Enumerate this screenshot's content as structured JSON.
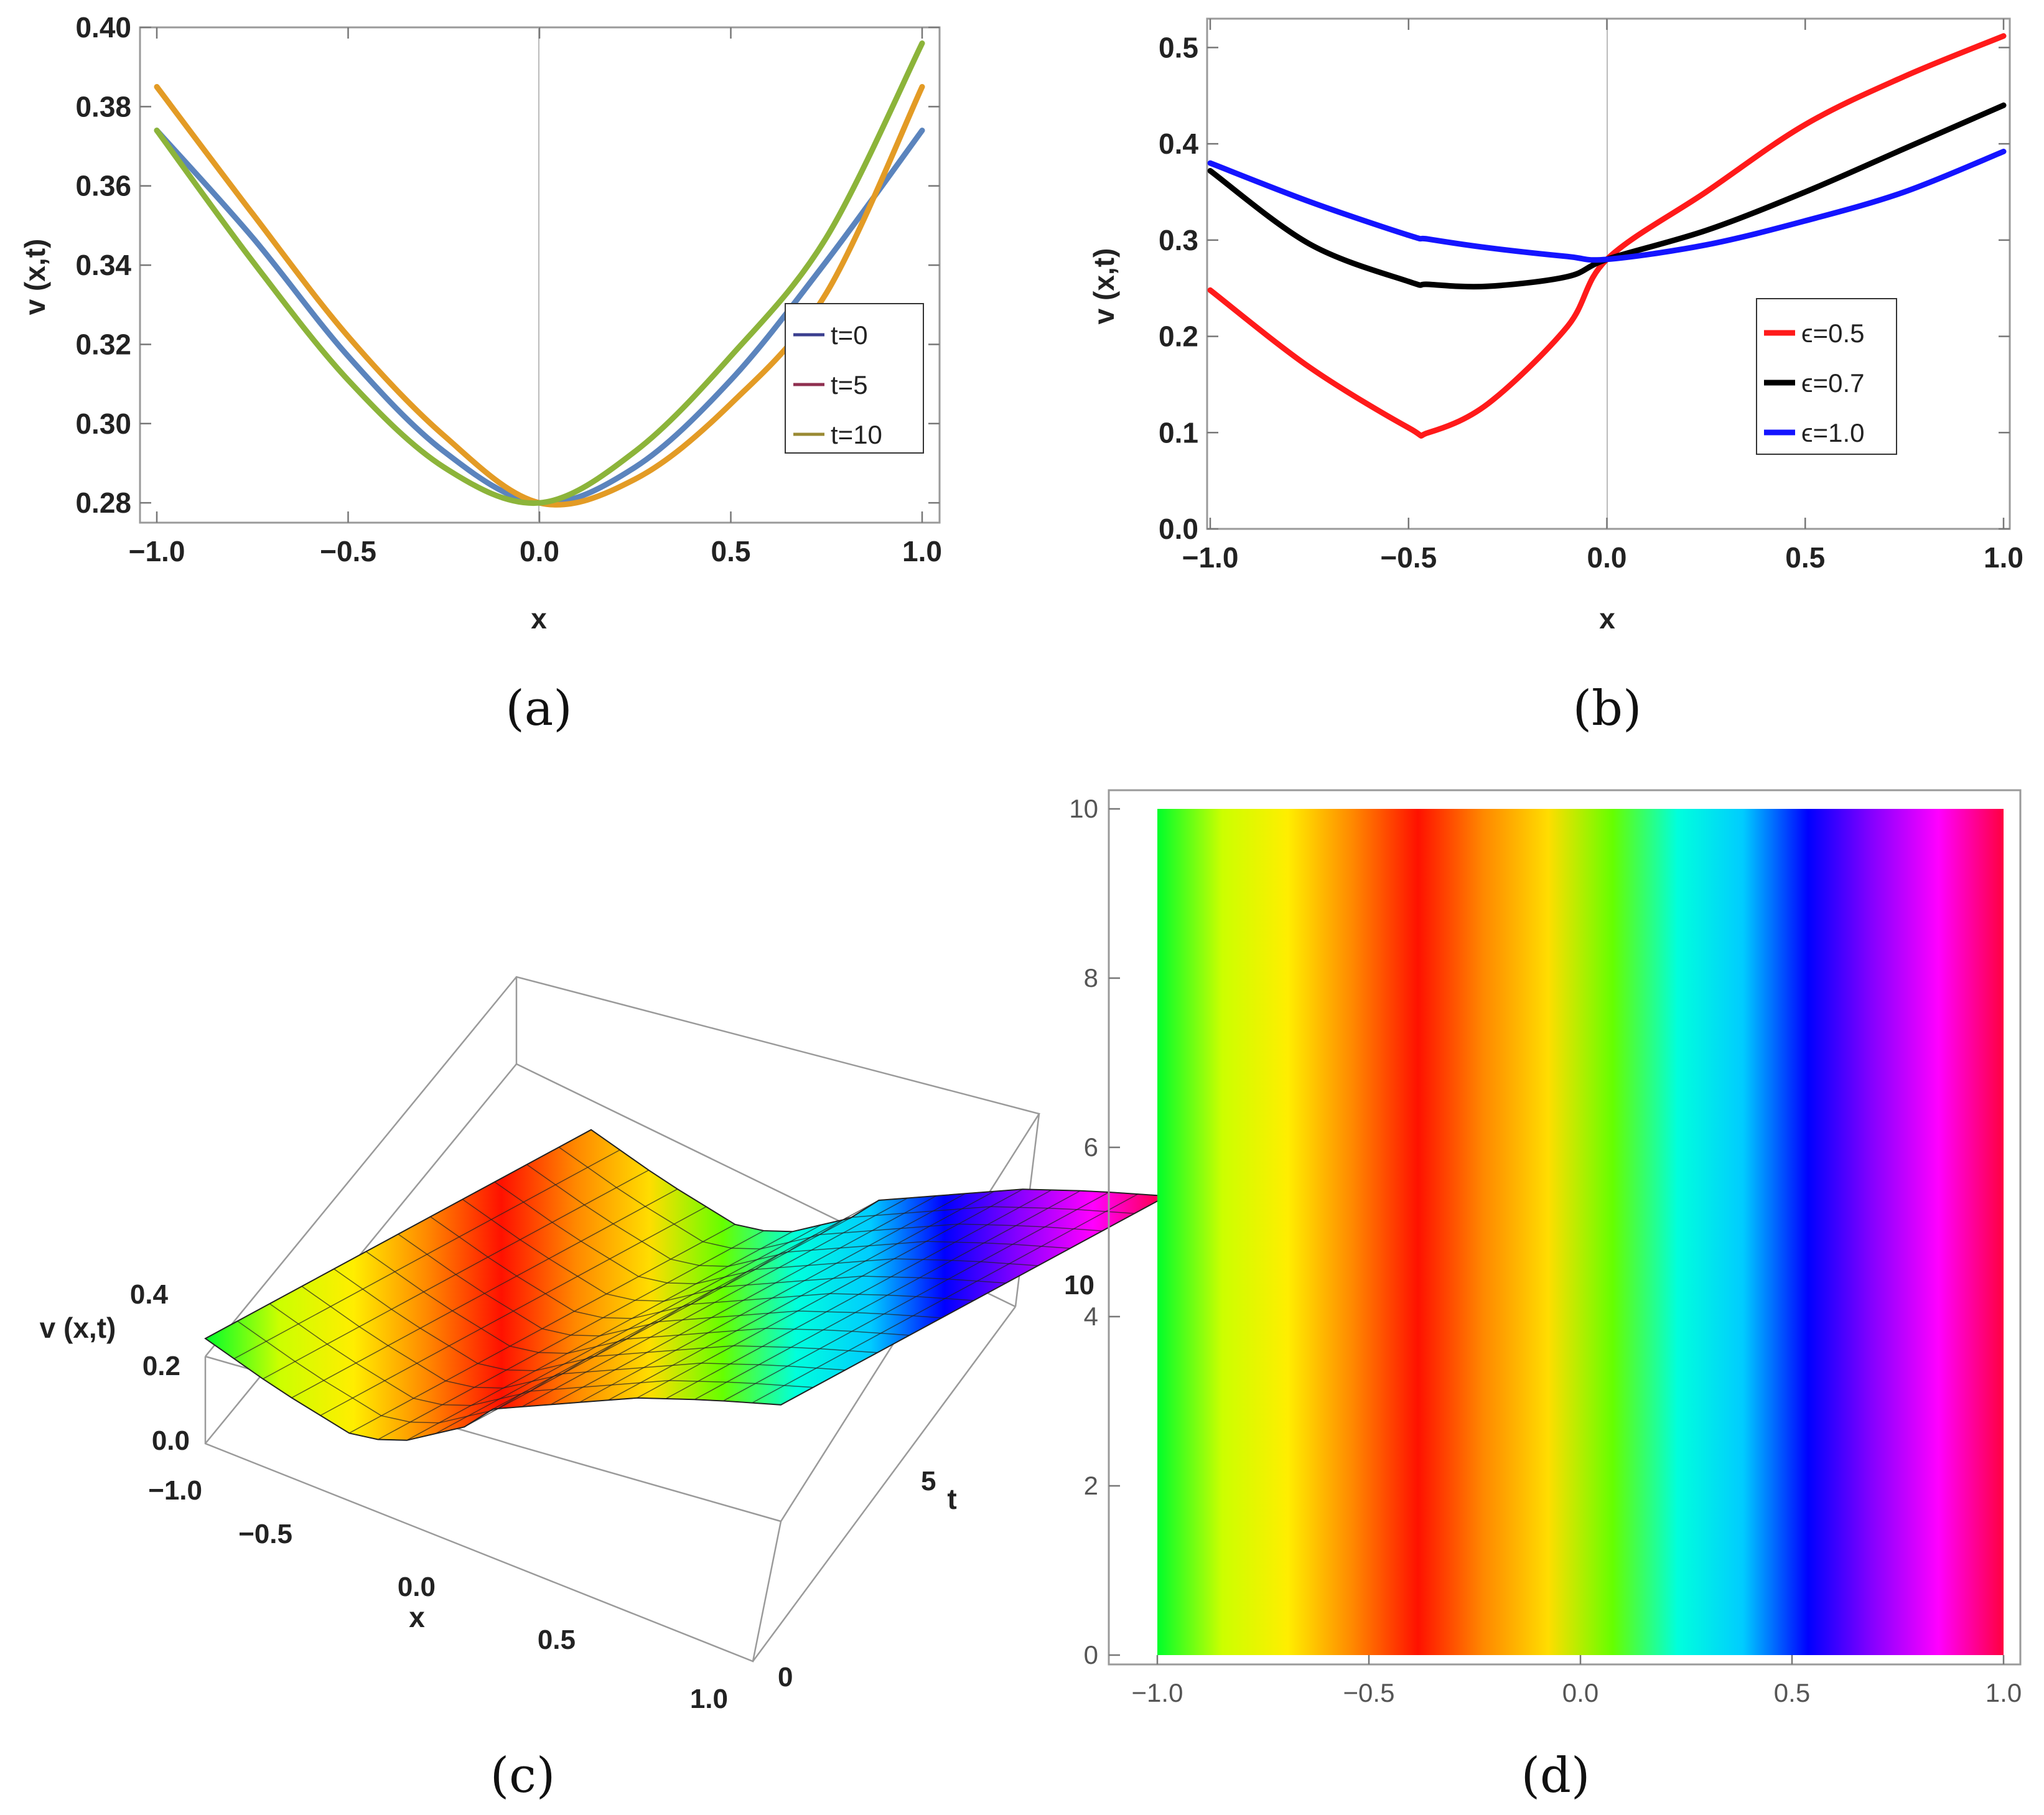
{
  "captions": [
    "(a)",
    "(b)",
    "(c)",
    "(d)"
  ],
  "chart_data": [
    {
      "id": "a",
      "type": "line",
      "xlabel": "x",
      "ylabel": "v (x,t)",
      "xlim": [
        -1.0,
        1.0
      ],
      "ylim": [
        0.275,
        0.4
      ],
      "xticks": [
        "-1.0",
        "-0.5",
        "0.0",
        "0.5",
        "1.0"
      ],
      "yticks": [
        "0.28",
        "0.30",
        "0.32",
        "0.34",
        "0.36",
        "0.38",
        "0.40"
      ],
      "legend_position": "right",
      "x": [
        -1.0,
        -0.75,
        -0.5,
        -0.25,
        0.0,
        0.25,
        0.5,
        0.75,
        1.0
      ],
      "series": [
        {
          "name": "t=0",
          "color": "#5b84bd",
          "legend_color": "#3b3f8f",
          "values": [
            0.374,
            0.347,
            0.317,
            0.293,
            0.28,
            0.289,
            0.311,
            0.341,
            0.374
          ]
        },
        {
          "name": "t=5",
          "color": "#e39b25",
          "legend_color": "#8f2f50",
          "values": [
            0.385,
            0.353,
            0.322,
            0.297,
            0.28,
            0.286,
            0.305,
            0.333,
            0.385
          ]
        },
        {
          "name": "t=10",
          "color": "#8cb43a",
          "legend_color": "#9a8a33",
          "values": [
            0.374,
            0.341,
            0.311,
            0.289,
            0.28,
            0.293,
            0.317,
            0.347,
            0.396
          ]
        }
      ]
    },
    {
      "id": "b",
      "type": "line",
      "xlabel": "x",
      "ylabel": "v (x,t)",
      "xlim": [
        -1.0,
        1.0
      ],
      "ylim": [
        0.0,
        0.53
      ],
      "xticks": [
        "-1.0",
        "-0.5",
        "0.0",
        "0.5",
        "1.0"
      ],
      "yticks": [
        "0.0",
        "0.1",
        "0.2",
        "0.3",
        "0.4",
        "0.5"
      ],
      "legend_position": "right",
      "x": [
        -1.0,
        -0.75,
        -0.5,
        -0.45,
        -0.3,
        -0.1,
        0.0,
        0.25,
        0.5,
        0.75,
        1.0
      ],
      "series": [
        {
          "name": "ϵ=0.5",
          "color": "#ff1a1a",
          "values": [
            0.248,
            0.168,
            0.105,
            0.1,
            0.13,
            0.21,
            0.28,
            0.35,
            0.42,
            0.47,
            0.512
          ]
        },
        {
          "name": "ϵ=0.7",
          "color": "#000000",
          "values": [
            0.372,
            0.296,
            0.257,
            0.254,
            0.252,
            0.262,
            0.28,
            0.31,
            0.35,
            0.395,
            0.44
          ]
        },
        {
          "name": "ϵ=1.0",
          "color": "#1414ff",
          "values": [
            0.38,
            0.34,
            0.305,
            0.301,
            0.292,
            0.283,
            0.28,
            0.295,
            0.32,
            0.35,
            0.392
          ]
        }
      ]
    },
    {
      "id": "c",
      "type": "surface3d",
      "xlabel": "x",
      "ylabel": "t",
      "zlabel": "v (x,t)",
      "xticks": [
        "-1.0",
        "-0.5",
        "0.0",
        "0.5",
        "1.0"
      ],
      "tticks": [
        "0",
        "5",
        "10"
      ],
      "zticks": [
        "0.0",
        "0.2",
        "0.4"
      ],
      "profile_x": [
        -1.0,
        -0.75,
        -0.5,
        -0.45,
        -0.3,
        -0.1,
        0.0,
        0.25,
        0.5,
        0.75,
        1.0
      ],
      "profile_v": [
        0.248,
        0.168,
        0.105,
        0.1,
        0.13,
        0.21,
        0.28,
        0.35,
        0.42,
        0.47,
        0.512
      ]
    },
    {
      "id": "d",
      "type": "heatmap",
      "xlim": [
        -1.0,
        1.0
      ],
      "ylim": [
        0,
        10
      ],
      "xticks": [
        "-1.0",
        "-0.5",
        "0.0",
        "0.5",
        "1.0"
      ],
      "yticks": [
        "0",
        "2",
        "4",
        "6",
        "8",
        "10"
      ],
      "colormap": [
        "#00ff2a",
        "#ccff00",
        "#ffee00",
        "#ff8800",
        "#ff1100",
        "#ff8800",
        "#ffdd00",
        "#66ff00",
        "#00ffdd",
        "#00ccff",
        "#0000ff",
        "#8800ff",
        "#ff00ff",
        "#ff0040"
      ]
    }
  ]
}
